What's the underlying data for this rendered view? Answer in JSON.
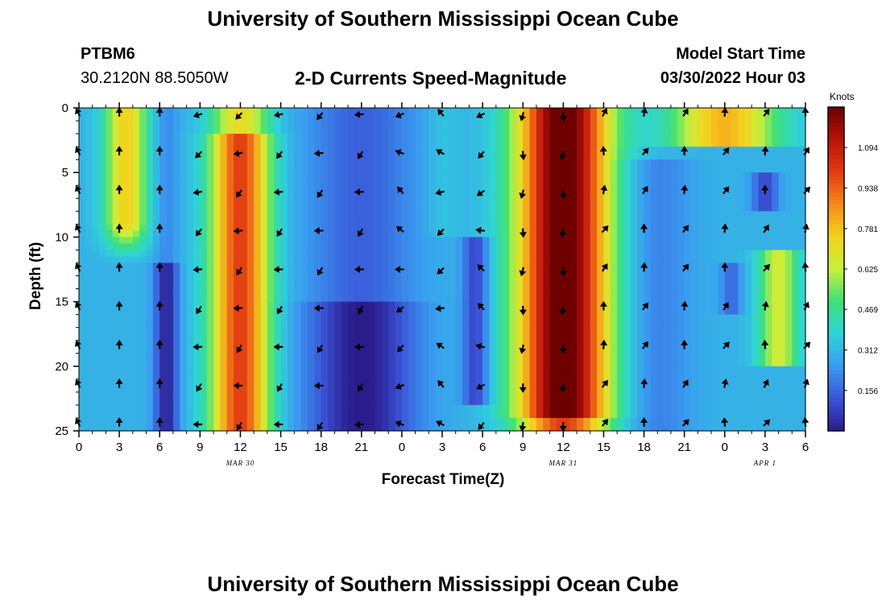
{
  "header": {
    "title": "University of Southern Mississippi Ocean Cube",
    "station": "PTBM6",
    "coordinates": "30.2120N  88.5050W",
    "subtitle": "2-D Currents Speed-Magnitude",
    "model_start_label": "Model Start Time",
    "model_start_value": "03/30/2022 Hour 03"
  },
  "footer": {
    "title": "University of Southern Mississippi Ocean Cube"
  },
  "chart_data": {
    "type": "heatmap",
    "title": "2-D Currents Speed-Magnitude",
    "xlabel": "Forecast Time(Z)",
    "ylabel": "Depth (ft)",
    "x_range_hours": [
      0,
      54
    ],
    "x_ticks": [
      "0",
      "3",
      "6",
      "9",
      "12",
      "15",
      "18",
      "21",
      "0",
      "3",
      "6",
      "9",
      "12",
      "15",
      "18",
      "21",
      "0",
      "3",
      "6"
    ],
    "date_labels": [
      {
        "text": "MAR 30",
        "hour": 12
      },
      {
        "text": "MAR 31",
        "hour": 36
      },
      {
        "text": "APR 1",
        "hour": 51
      }
    ],
    "y_ticks": [
      0,
      5,
      10,
      15,
      20,
      25
    ],
    "ylim": [
      0,
      25
    ],
    "colorbar": {
      "title": "Knots",
      "ticks": [
        "0.156",
        "0.312",
        "0.469",
        "0.625",
        "0.781",
        "0.938",
        "1.094"
      ],
      "range": [
        0,
        1.25
      ],
      "colors": [
        "#2b1a8a",
        "#3a55d8",
        "#3a9bf0",
        "#2fd3d8",
        "#3de07a",
        "#c8f03c",
        "#f4d21c",
        "#f58a1c",
        "#e23a12",
        "#b5120a",
        "#6e0000"
      ]
    },
    "arrow_times": [
      0,
      3,
      6,
      9,
      12,
      15,
      18,
      21,
      24,
      27,
      30,
      33,
      36,
      39,
      42,
      45,
      48,
      51,
      54
    ],
    "arrow_depths": [
      0,
      3,
      6,
      9,
      12,
      15,
      18,
      21,
      24
    ]
  }
}
